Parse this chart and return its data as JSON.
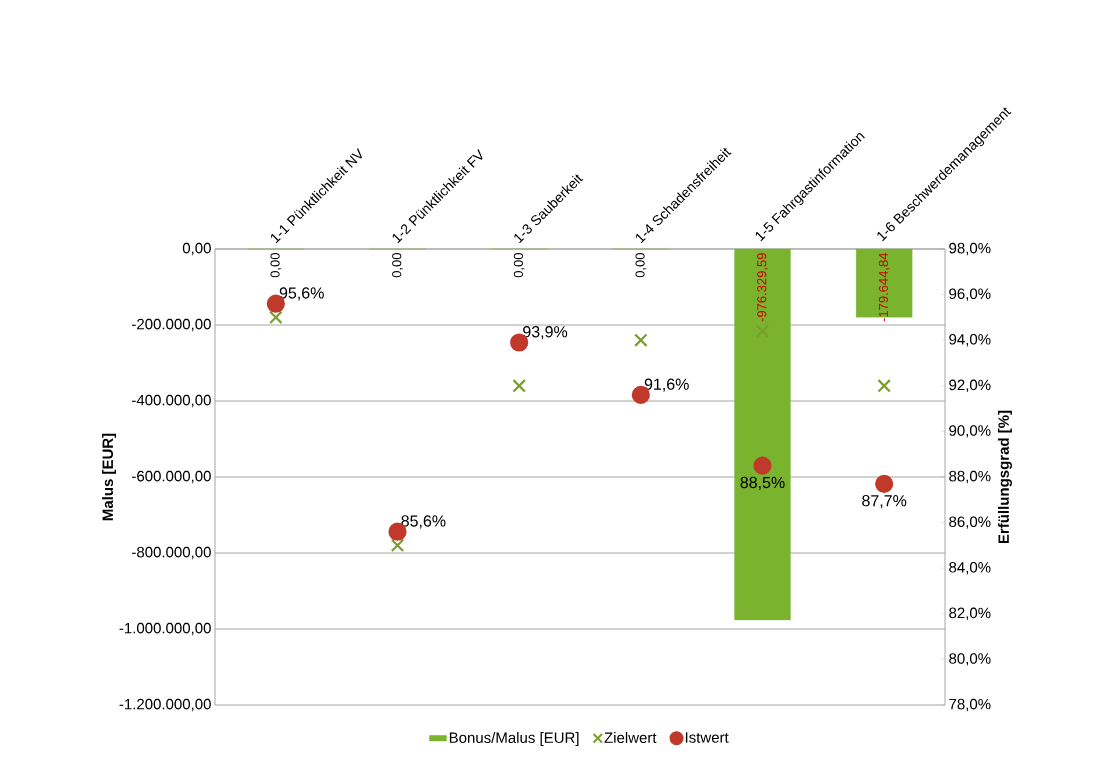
{
  "chart_data": {
    "type": "bar",
    "categories": [
      "1-1 Pünktlichkeit NV",
      "1-2 Pünktlichkeit FV",
      "1-3 Sauberkeit",
      "1-4 Schadensfreiheit",
      "1-5 Fahrgastinformation",
      "1-6 Beschwerdemanagement"
    ],
    "ylabel": "Malus [EUR]",
    "y2label": "Erfüllungsgrad [%]",
    "ylim": [
      -1200000,
      0
    ],
    "yticks": [
      {
        "value": 0,
        "label": "0,00"
      },
      {
        "value": -200000,
        "label": "-200.000,00"
      },
      {
        "value": -400000,
        "label": "-400.000,00"
      },
      {
        "value": -600000,
        "label": "-600.000,00"
      },
      {
        "value": -800000,
        "label": "-800.000,00"
      },
      {
        "value": -1000000,
        "label": "-1.000.000,00"
      },
      {
        "value": -1200000,
        "label": "-1.200.000,00"
      }
    ],
    "y2lim": [
      78,
      98
    ],
    "y2ticks": [
      {
        "value": 98,
        "label": "98,0%"
      },
      {
        "value": 96,
        "label": "96,0%"
      },
      {
        "value": 94,
        "label": "94,0%"
      },
      {
        "value": 92,
        "label": "92,0%"
      },
      {
        "value": 90,
        "label": "90,0%"
      },
      {
        "value": 88,
        "label": "88,0%"
      },
      {
        "value": 86,
        "label": "86,0%"
      },
      {
        "value": 84,
        "label": "84,0%"
      },
      {
        "value": 82,
        "label": "82,0%"
      },
      {
        "value": 80,
        "label": "80,0%"
      },
      {
        "value": 78,
        "label": "78,0%"
      }
    ],
    "grid": "y",
    "legend": "bottom",
    "series": [
      {
        "name": "Bonus/Malus [EUR]",
        "color": "#7ab32e",
        "values": [
          0,
          0,
          0,
          0,
          -976329.59,
          -179644.84
        ],
        "value_labels": [
          "0,00",
          "0,00",
          "0,00",
          "0,00",
          "-976.329,59",
          "-179.644,84"
        ]
      },
      {
        "name": "Zielwert",
        "type": "scatter",
        "marker": "cross",
        "axis": "y2",
        "color": "#7a9e2a",
        "values": [
          95,
          85,
          92,
          94,
          94.4,
          92
        ]
      },
      {
        "name": "Istwert",
        "type": "scatter",
        "marker": "circle",
        "axis": "y2",
        "color": "#c0392b",
        "values": [
          95.6,
          85.6,
          93.9,
          91.6,
          88.5,
          87.7
        ],
        "value_labels": [
          "95,6%",
          "85,6%",
          "93,9%",
          "91,6%",
          "88,5%",
          "87,7%"
        ]
      }
    ]
  }
}
